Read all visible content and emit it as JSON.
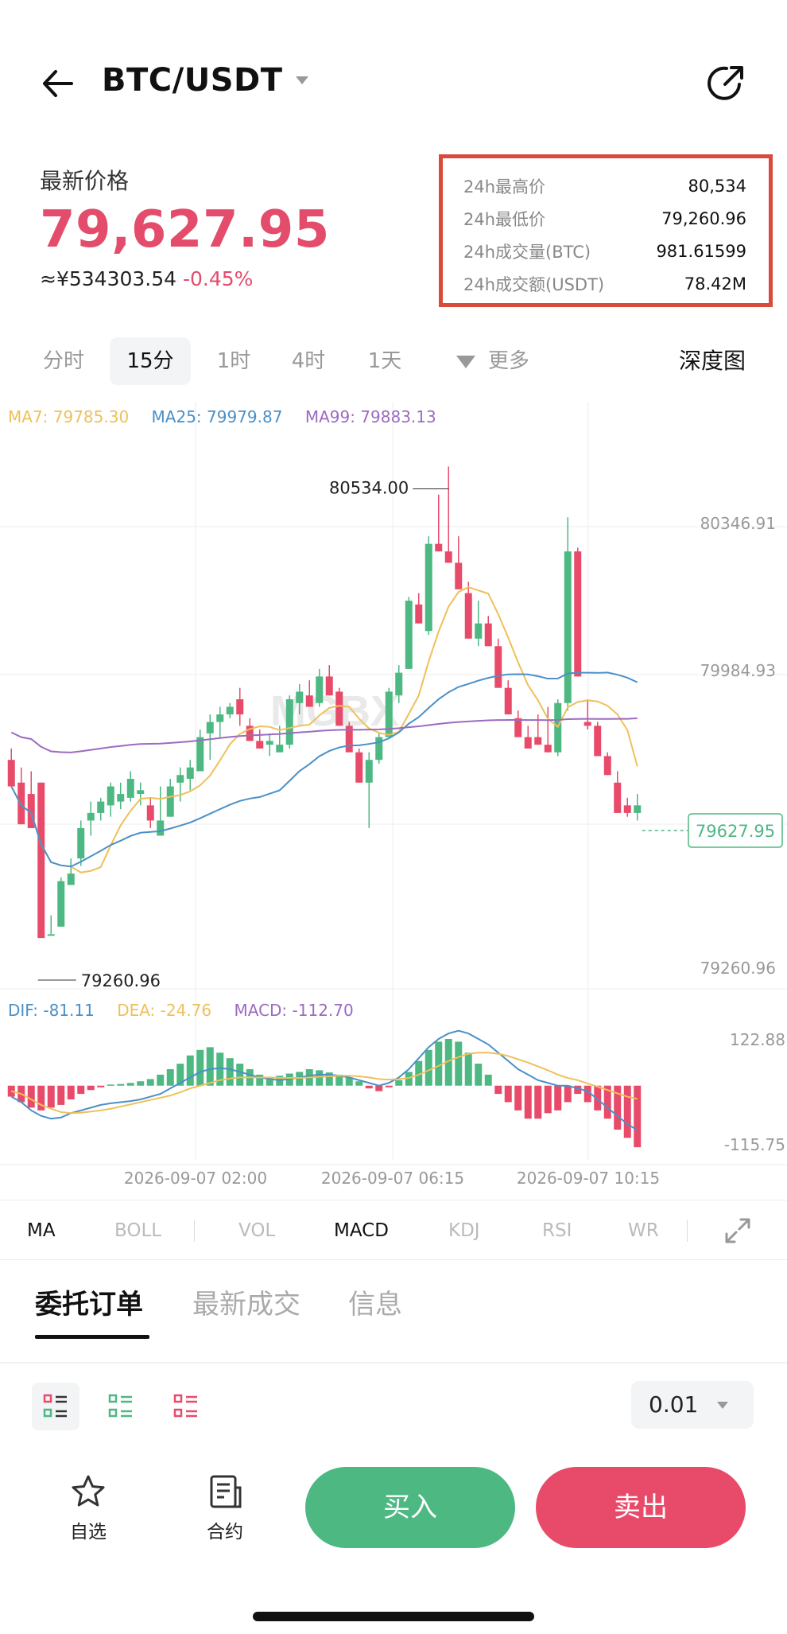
{
  "header": {
    "pair": "BTC/USDT",
    "back_icon": "arrow-left-icon",
    "share_icon": "share-icon"
  },
  "price": {
    "label": "最新价格",
    "last": "79,627.95",
    "cny": "≈¥534303.54",
    "change": "-0.45%"
  },
  "stats": [
    {
      "k": "24h最高价",
      "v": "80,534"
    },
    {
      "k": "24h最低价",
      "v": "79,260.96"
    },
    {
      "k": "24h成交量(BTC)",
      "v": "981.61599"
    },
    {
      "k": "24h成交额(USDT)",
      "v": "78.42M"
    }
  ],
  "time_tabs": [
    "分时",
    "15分",
    "1时",
    "4时",
    "1天",
    "更多"
  ],
  "time_tab_active": "15分",
  "depth_label": "深度图",
  "ma_legend": {
    "ma7": "MA7: 79785.30",
    "ma25": "MA25: 79979.87",
    "ma99": "MA99: 79883.13"
  },
  "macd_legend": {
    "dif": "DIF: -81.11",
    "dea": "DEA: -24.76",
    "macd": "MACD: -112.70"
  },
  "watermark": "MGBX",
  "colors": {
    "up": "#4db882",
    "down": "#e84b6a",
    "ma7": "#efc05a",
    "ma25": "#4a90c8",
    "ma99": "#9b6bc0"
  },
  "chart_data": {
    "type": "candlestick",
    "interval": "15分",
    "price_axis_labels": [
      "80346.91",
      "79984.93",
      "79627.95",
      "79260.96"
    ],
    "high_label": "80534.00",
    "low_label": "79260.96",
    "last_price_tag": "79627.95",
    "ylim": [
      79260.96,
      80534.0
    ],
    "x_tick_labels": [
      "2026-09-07 02:00",
      "2026-09-07 06:15",
      "2026-09-07 10:15"
    ],
    "candles": [
      [
        79760,
        79790,
        79690,
        79700
      ],
      [
        79700,
        79740,
        79590,
        79610
      ],
      [
        79670,
        79730,
        79580,
        79700
      ],
      [
        79700,
        79700,
        79290,
        79300
      ],
      [
        79300,
        79350,
        79300,
        79330
      ],
      [
        79320,
        79330,
        79440,
        79450
      ],
      [
        79430,
        79450,
        79460,
        79500
      ],
      [
        79500,
        79480,
        79580,
        79600
      ],
      [
        79600,
        79560,
        79620,
        79650
      ],
      [
        79620,
        79600,
        79650,
        79660
      ],
      [
        79640,
        79610,
        79690,
        79700
      ],
      [
        79650,
        79630,
        79670,
        79700
      ],
      [
        79660,
        79650,
        79710,
        79730
      ],
      [
        79670,
        79640,
        79680,
        79700
      ],
      [
        79640,
        79580,
        79600,
        79660
      ],
      [
        79560,
        79600,
        79600,
        79690
      ],
      [
        79610,
        79610,
        79690,
        79710
      ],
      [
        79700,
        79650,
        79720,
        79740
      ],
      [
        79710,
        79680,
        79740,
        79760
      ],
      [
        79730,
        79730,
        79820,
        79840
      ],
      [
        79830,
        79760,
        79860,
        79880
      ],
      [
        79860,
        79820,
        79880,
        79900
      ],
      [
        79880,
        79870,
        79900,
        79910
      ],
      [
        79920,
        79850,
        79880,
        79950
      ],
      [
        79850,
        79840,
        79810,
        79870
      ],
      [
        79810,
        79800,
        79790,
        79840
      ],
      [
        79800,
        79770,
        79810,
        79830
      ],
      [
        79780,
        79780,
        79800,
        79850
      ],
      [
        79800,
        79790,
        79920,
        79930
      ],
      [
        79910,
        79880,
        79940,
        79960
      ],
      [
        79930,
        79910,
        79900,
        79970
      ],
      [
        79910,
        79900,
        79980,
        80000
      ],
      [
        79980,
        79960,
        79930,
        80010
      ],
      [
        79940,
        79910,
        79850,
        79950
      ],
      [
        79850,
        79820,
        79780,
        79860
      ],
      [
        79780,
        79760,
        79700,
        79790
      ],
      [
        79700,
        79580,
        79760,
        79780
      ],
      [
        79760,
        79750,
        79820,
        79830
      ],
      [
        79820,
        79840,
        79940,
        79950
      ],
      [
        79930,
        79910,
        79990,
        80010
      ],
      [
        80000,
        80010,
        80180,
        80190
      ],
      [
        80170,
        80150,
        80120,
        80200
      ],
      [
        80100,
        80090,
        80330,
        80350
      ],
      [
        80330,
        80320,
        80310,
        80460
      ],
      [
        80310,
        80300,
        80280,
        80534
      ],
      [
        80280,
        80240,
        80210,
        80350
      ],
      [
        80200,
        80180,
        80080,
        80230
      ],
      [
        80080,
        80060,
        80120,
        80180
      ],
      [
        80120,
        80070,
        80060,
        80140
      ],
      [
        80060,
        80040,
        79950,
        80080
      ],
      [
        79950,
        79940,
        79880,
        79970
      ],
      [
        79870,
        79880,
        79820,
        79890
      ],
      [
        79820,
        79800,
        79790,
        79850
      ],
      [
        79820,
        79800,
        79800,
        79880
      ],
      [
        79800,
        79780,
        79780,
        79900
      ],
      [
        79780,
        79770,
        79910,
        79920
      ],
      [
        79910,
        79890,
        80310,
        80400
      ],
      [
        80310,
        80300,
        79980,
        80320
      ],
      [
        79860,
        79840,
        79850,
        79920
      ],
      [
        79850,
        79800,
        79770,
        79860
      ],
      [
        79770,
        79760,
        79720,
        79780
      ],
      [
        79700,
        79690,
        79620,
        79730
      ],
      [
        79640,
        79610,
        79620,
        79660
      ],
      [
        79620,
        79600,
        79640,
        79670
      ]
    ],
    "macd_axis_labels": [
      "122.88",
      "-115.75"
    ],
    "macd_ylim": [
      -115.75,
      122.88
    ],
    "macd_hist": [
      -20,
      -30,
      -40,
      -45,
      -40,
      -35,
      -25,
      -15,
      -8,
      -3,
      2,
      3,
      5,
      8,
      12,
      20,
      30,
      40,
      55,
      65,
      70,
      60,
      50,
      40,
      30,
      20,
      15,
      18,
      22,
      25,
      30,
      28,
      24,
      20,
      15,
      8,
      -5,
      -10,
      -3,
      10,
      25,
      45,
      65,
      80,
      85,
      80,
      60,
      40,
      20,
      -15,
      -30,
      -45,
      -60,
      -60,
      -50,
      -45,
      -30,
      -15,
      -30,
      -45,
      -60,
      -80,
      -95,
      -112
    ],
    "dif": [
      -20,
      -30,
      -45,
      -55,
      -60,
      -58,
      -50,
      -45,
      -40,
      -35,
      -32,
      -30,
      -28,
      -25,
      -20,
      -15,
      -5,
      5,
      15,
      25,
      30,
      32,
      30,
      25,
      20,
      15,
      12,
      10,
      12,
      15,
      18,
      20,
      20,
      18,
      15,
      10,
      5,
      0,
      5,
      15,
      30,
      50,
      70,
      85,
      95,
      100,
      95,
      85,
      75,
      60,
      45,
      30,
      20,
      10,
      5,
      0,
      0,
      -5,
      -10,
      -25,
      -40,
      -55,
      -70,
      -81
    ],
    "dea": [
      -10,
      -15,
      -25,
      -35,
      -42,
      -48,
      -50,
      -49,
      -47,
      -45,
      -42,
      -38,
      -34,
      -30,
      -26,
      -22,
      -18,
      -12,
      -5,
      0,
      5,
      10,
      13,
      15,
      15,
      15,
      15,
      14,
      14,
      14,
      15,
      16,
      17,
      18,
      18,
      17,
      15,
      12,
      11,
      12,
      14,
      20,
      28,
      36,
      45,
      52,
      58,
      60,
      60,
      58,
      54,
      48,
      42,
      35,
      28,
      20,
      14,
      10,
      4,
      -2,
      -8,
      -14,
      -20,
      -24
    ]
  },
  "indicators": {
    "main": [
      "MA",
      "BOLL"
    ],
    "sub": [
      "VOL",
      "MACD",
      "KDJ",
      "RSI",
      "WR"
    ],
    "expand_icon": "expand-icon"
  },
  "order_tabs": [
    "委托订单",
    "最新成交",
    "信息"
  ],
  "precision": "0.01",
  "bottom": {
    "fav": "自选",
    "contract": "合约",
    "buy": "买入",
    "sell": "卖出"
  }
}
